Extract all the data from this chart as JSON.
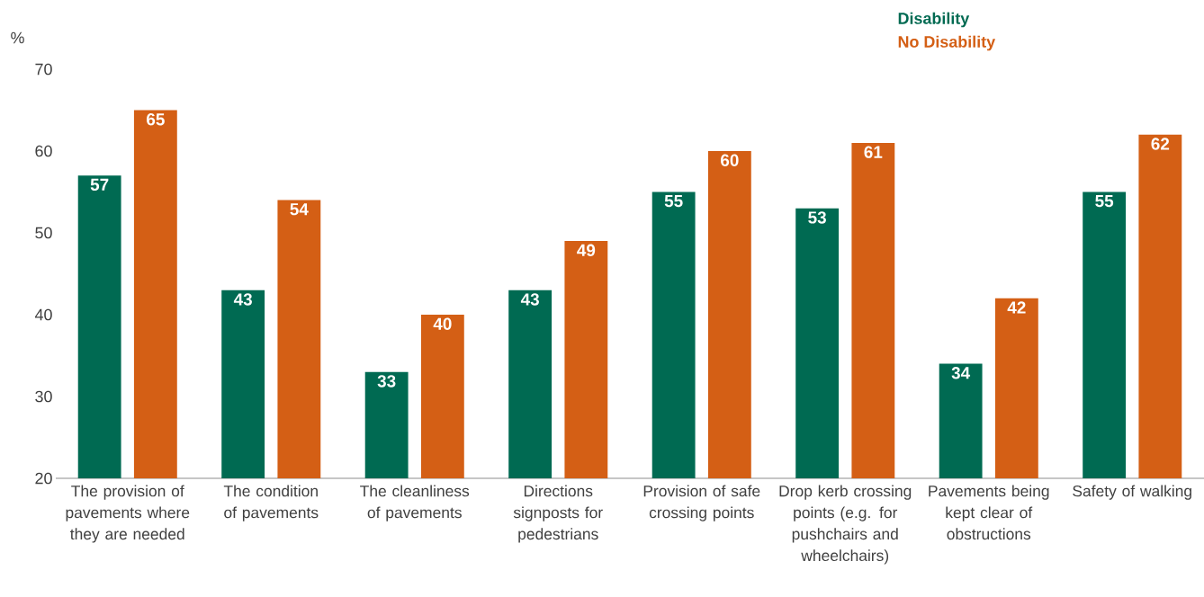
{
  "chart_data": {
    "type": "bar",
    "ylabel": "%",
    "categories": [
      "The provision of pavements where they are needed",
      "The condition of pavements",
      "The cleanliness of pavements",
      "Directions signposts for pedestrians",
      "Provision of safe crossing points",
      "Drop kerb crossing points (e.g. for pushchairs and wheelchairs)",
      "Pavements being kept clear of obstructions",
      "Safety of walking"
    ],
    "series": [
      {
        "name": "Disability",
        "color": "#006a52",
        "values": [
          57,
          43,
          33,
          43,
          55,
          53,
          34,
          55
        ]
      },
      {
        "name": "No Disability",
        "color": "#d45f15",
        "values": [
          65,
          54,
          40,
          49,
          60,
          61,
          42,
          62
        ]
      }
    ],
    "ylim": [
      20,
      70
    ],
    "yticks": [
      20,
      30,
      40,
      50,
      60,
      70
    ],
    "grid": false,
    "legend": "top right",
    "data_labels": true
  }
}
